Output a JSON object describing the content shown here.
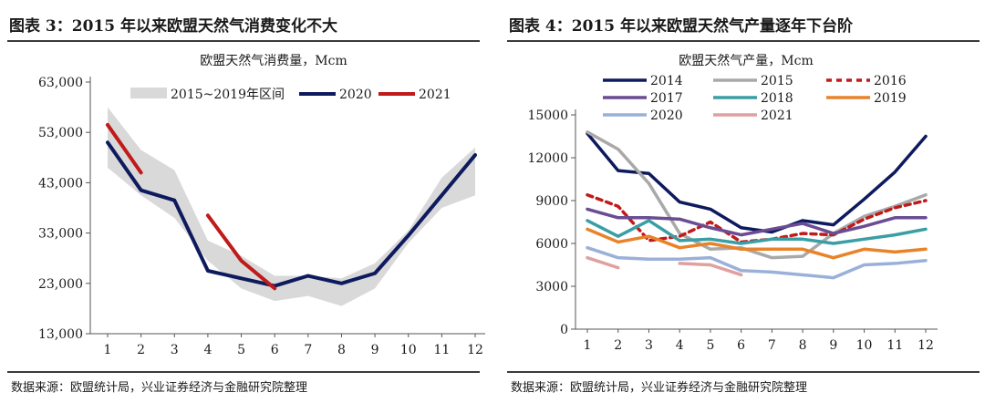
{
  "figures": [
    {
      "title": "图表 3：2015 年以来欧盟天然气消费变化不大",
      "source": "数据来源：欧盟统计局，兴业证券经济与金融研究院整理"
    },
    {
      "title": "图表 4：2015 年以来欧盟天然气产量逐年下台阶",
      "source": "数据来源：欧盟统计局，兴业证券经济与金融研究院整理"
    }
  ],
  "chart_data": [
    {
      "type": "line",
      "title": "欧盟天然气消费量，Mcm",
      "x": [
        1,
        2,
        3,
        4,
        5,
        6,
        7,
        8,
        9,
        10,
        11,
        12
      ],
      "y_ticks": [
        "13,000",
        "23,000",
        "33,000",
        "43,000",
        "53,000",
        "63,000"
      ],
      "ylim": [
        13000,
        63000
      ],
      "legend_position": "top",
      "band": {
        "name": "2015~2019年区间",
        "color": "#d9d9d9",
        "low": [
          46000,
          40500,
          36000,
          27500,
          22000,
          19500,
          20500,
          18500,
          22000,
          31000,
          38000,
          40500
        ],
        "high": [
          58000,
          49500,
          45500,
          31500,
          28500,
          24500,
          24500,
          24000,
          27000,
          33500,
          44000,
          50000
        ]
      },
      "series": [
        {
          "name": "2020",
          "color": "#0e1a5e",
          "values": [
            51000,
            41500,
            39500,
            25500,
            24000,
            22500,
            24500,
            23000,
            25000,
            32500,
            40500,
            48500
          ]
        },
        {
          "name": "2021",
          "color": "#c01a1a",
          "values": [
            54500,
            45000,
            null,
            36500,
            27500,
            22000,
            null,
            null,
            null,
            null,
            null,
            null
          ]
        }
      ]
    },
    {
      "type": "line",
      "title": "欧盟天然气产量，Mcm",
      "x": [
        1,
        2,
        3,
        4,
        5,
        6,
        7,
        8,
        9,
        10,
        11,
        12
      ],
      "y_ticks": [
        "0",
        "3000",
        "6000",
        "9000",
        "12000",
        "15000"
      ],
      "ylim": [
        0,
        15000
      ],
      "legend_position": "top",
      "series": [
        {
          "name": "2014",
          "color": "#0e1a5e",
          "dash": false,
          "values": [
            13700,
            11100,
            10900,
            8900,
            8400,
            7100,
            6800,
            7600,
            7300,
            9100,
            11000,
            13500
          ]
        },
        {
          "name": "2015",
          "color": "#a9a9a9",
          "dash": false,
          "values": [
            13800,
            12600,
            10200,
            6700,
            5600,
            5700,
            5000,
            5100,
            6700,
            7900,
            8600,
            9400
          ]
        },
        {
          "name": "2016",
          "color": "#c01a1a",
          "dash": true,
          "values": [
            9400,
            8600,
            6200,
            6500,
            7500,
            6100,
            6300,
            6700,
            6600,
            7700,
            8500,
            9000
          ]
        },
        {
          "name": "2017",
          "color": "#6a4c93",
          "dash": false,
          "values": [
            8400,
            7800,
            7800,
            7700,
            7100,
            6600,
            7000,
            7400,
            6700,
            7200,
            7800,
            7800
          ]
        },
        {
          "name": "2018",
          "color": "#3a9ea5",
          "dash": false,
          "values": [
            7600,
            6500,
            7600,
            6200,
            6300,
            6000,
            6300,
            6300,
            6000,
            6300,
            6600,
            7000
          ]
        },
        {
          "name": "2019",
          "color": "#e8832a",
          "dash": false,
          "values": [
            7000,
            6100,
            6500,
            5700,
            6000,
            5600,
            5600,
            5600,
            5000,
            5600,
            5400,
            5600
          ]
        },
        {
          "name": "2020",
          "color": "#9bb0d9",
          "dash": false,
          "values": [
            5700,
            5000,
            4900,
            4900,
            5000,
            4100,
            4000,
            3800,
            3600,
            4500,
            4600,
            4800
          ]
        },
        {
          "name": "2021",
          "color": "#e0a0a0",
          "dash": false,
          "values": [
            5000,
            4300,
            null,
            4600,
            4500,
            3800,
            null,
            null,
            null,
            null,
            null,
            null
          ]
        }
      ]
    }
  ]
}
